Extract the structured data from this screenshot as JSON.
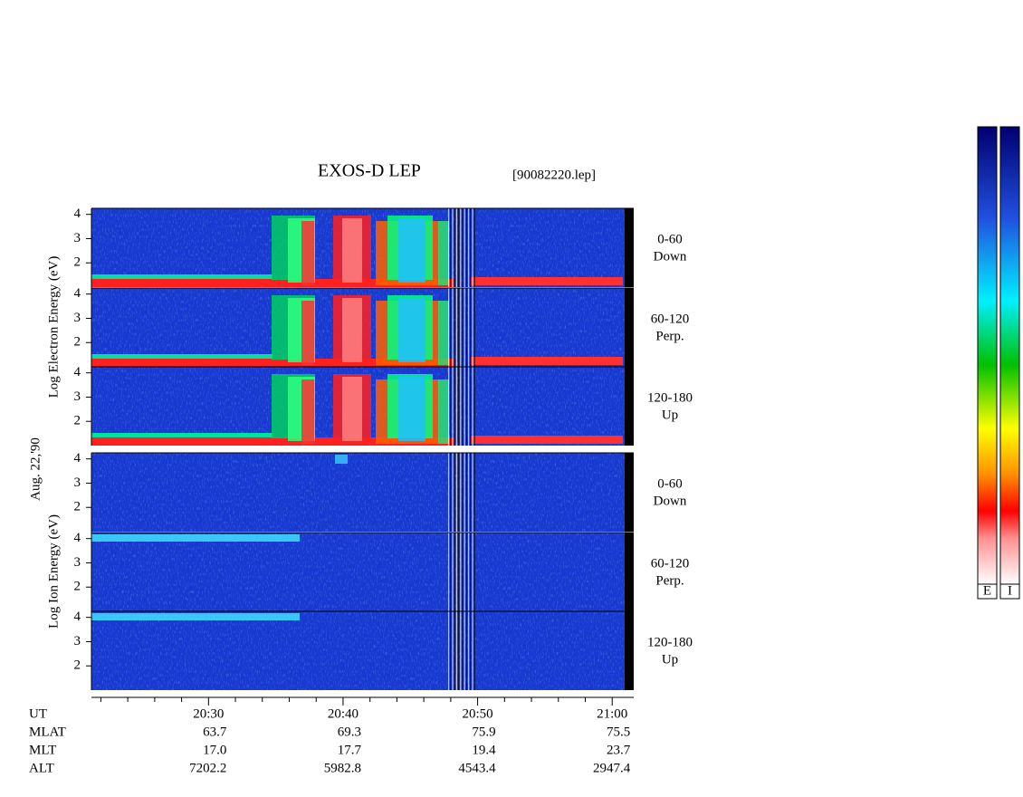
{
  "chart_data": {
    "type": "spectrogram",
    "title": "EXOS-D LEP",
    "file": "[90082220.lep]",
    "date": "Aug. 22,'90",
    "xlim": [
      21.3,
      61.6
    ],
    "xticks": [
      {
        "value": 30,
        "label": "20:30"
      },
      {
        "value": 40,
        "label": "20:40"
      },
      {
        "value": 50,
        "label": "20:50"
      },
      {
        "value": 60,
        "label": "21:00"
      }
    ],
    "xminorticks": [
      22,
      24,
      26,
      28,
      32,
      34,
      36,
      38,
      42,
      44,
      46,
      48,
      52,
      54,
      56,
      58
    ],
    "ylim": [
      1,
      4.25
    ],
    "yticks": [
      2,
      3,
      4
    ],
    "groups": [
      {
        "ylabel": "Log Electron Energy (eV)",
        "panels": [
          {
            "angle": "0-60",
            "direction": "Down"
          },
          {
            "angle": "60-120",
            "direction": "Perp."
          },
          {
            "angle": "120-180",
            "direction": "Up"
          }
        ]
      },
      {
        "ylabel": "Log Ion Energy (eV)",
        "panels": [
          {
            "angle": "0-60",
            "direction": "Down"
          },
          {
            "angle": "60-120",
            "direction": "Perp."
          },
          {
            "angle": "120-180",
            "direction": "Up"
          }
        ]
      }
    ],
    "ephemeris": [
      {
        "label": "UT"
      },
      {
        "label": "MLAT",
        "values": [
          63.7,
          69.3,
          75.9,
          75.5
        ]
      },
      {
        "label": "MLT",
        "values": [
          17.0,
          17.7,
          19.4,
          23.7
        ],
        "value_labels": [
          "17.0",
          "17.7",
          "19.4",
          "23.7"
        ]
      },
      {
        "label": "ALT",
        "values": [
          7202.2,
          5982.8,
          4543.4,
          2947.4
        ]
      }
    ],
    "colorbars": [
      "E",
      "I"
    ]
  }
}
